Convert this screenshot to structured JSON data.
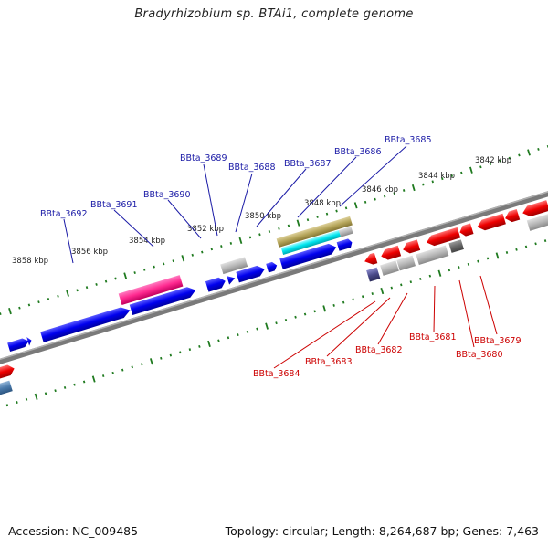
{
  "title": "Bradyrhizobium sp. BTAi1, complete genome",
  "footer": {
    "accession": "Accession: NC_009485",
    "summary": "Topology: circular; Length: 8,264,687 bp; Genes: 7,463"
  },
  "ticks": [
    "3842 kbp",
    "3844 kbp",
    "3846 kbp",
    "3848 kbp",
    "3850 kbp",
    "3852 kbp",
    "3854 kbp",
    "3856 kbp",
    "3858 kbp"
  ],
  "genes_forward": [
    "BBta_3685",
    "BBta_3686",
    "BBta_3687",
    "BBta_3688",
    "BBta_3689",
    "BBta_3690",
    "BBta_3691",
    "BBta_3692"
  ],
  "genes_reverse": [
    "BBta_3679",
    "BBta_3680",
    "BBta_3681",
    "BBta_3682",
    "BBta_3683",
    "BBta_3684"
  ],
  "colors": {
    "forward_cds": "#0000ee",
    "reverse_cds": "#ee0000",
    "forward_label": "#1a1aa6",
    "reverse_label": "#cc0000",
    "tick": "#1f7a1f",
    "backbone": "#7a7a7a",
    "rna_pink": "#ff3399",
    "rna_cyan": "#00e5ee",
    "misc_olive": "#b5a55a",
    "other_gray": "#b8b8b8"
  }
}
